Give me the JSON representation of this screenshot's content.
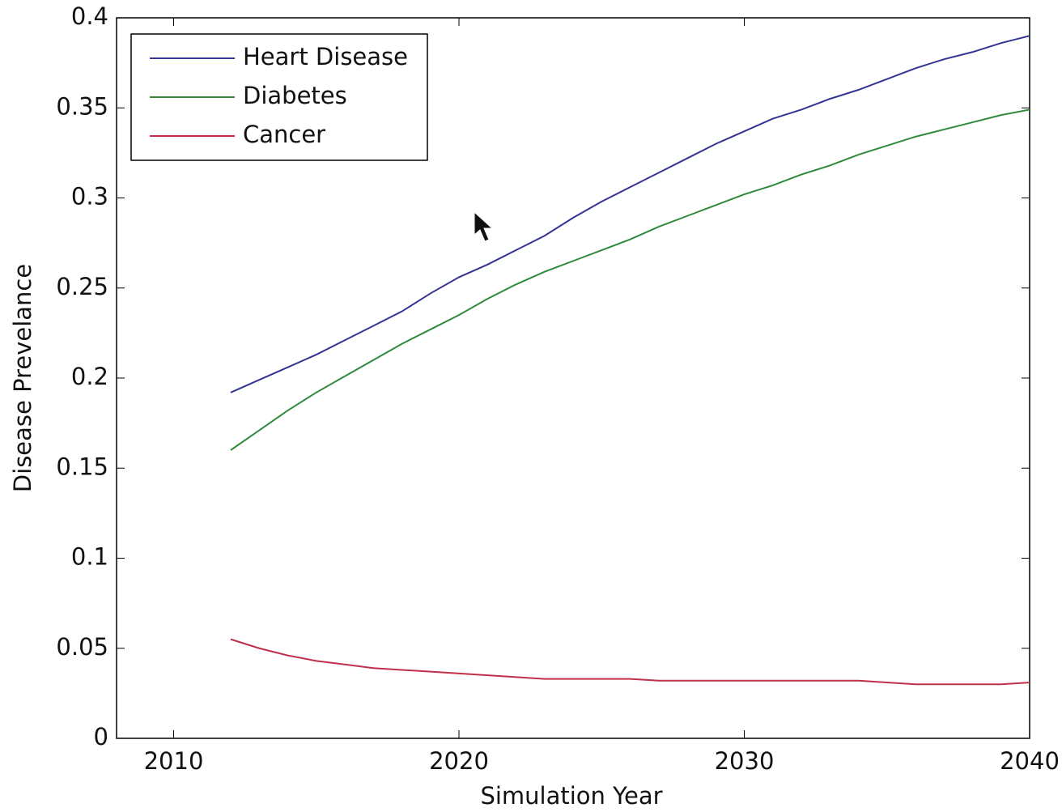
{
  "chart_data": {
    "type": "line",
    "x_label": "Simulation Year",
    "y_label": "Disease Prevelance",
    "x": [
      2012,
      2013,
      2014,
      2015,
      2016,
      2017,
      2018,
      2019,
      2020,
      2021,
      2022,
      2023,
      2024,
      2025,
      2026,
      2027,
      2028,
      2029,
      2030,
      2031,
      2032,
      2033,
      2034,
      2035,
      2036,
      2037,
      2038,
      2039,
      2040
    ],
    "series": [
      {
        "name": "Heart Disease",
        "color": "#343494",
        "values": [
          0.192,
          0.199,
          0.206,
          0.213,
          0.221,
          0.229,
          0.237,
          0.247,
          0.256,
          0.263,
          0.271,
          0.279,
          0.289,
          0.298,
          0.306,
          0.314,
          0.322,
          0.33,
          0.337,
          0.344,
          0.349,
          0.355,
          0.36,
          0.366,
          0.372,
          0.377,
          0.381,
          0.386,
          0.39
        ]
      },
      {
        "name": "Diabetes",
        "color": "#2f8a3c",
        "values": [
          0.16,
          0.171,
          0.182,
          0.192,
          0.201,
          0.21,
          0.219,
          0.227,
          0.235,
          0.244,
          0.252,
          0.259,
          0.265,
          0.271,
          0.277,
          0.284,
          0.29,
          0.296,
          0.302,
          0.307,
          0.313,
          0.318,
          0.324,
          0.329,
          0.334,
          0.338,
          0.342,
          0.346,
          0.349
        ]
      },
      {
        "name": "Cancer",
        "color": "#c0304a",
        "values": [
          0.055,
          0.05,
          0.046,
          0.043,
          0.041,
          0.039,
          0.038,
          0.037,
          0.036,
          0.035,
          0.034,
          0.033,
          0.033,
          0.033,
          0.033,
          0.032,
          0.032,
          0.032,
          0.032,
          0.032,
          0.032,
          0.032,
          0.032,
          0.031,
          0.03,
          0.03,
          0.03,
          0.03,
          0.031
        ]
      }
    ],
    "xlim": [
      2008,
      2040
    ],
    "xticks": [
      2010,
      2020,
      2030,
      2040
    ],
    "ylim": [
      0,
      0.4
    ],
    "yticks": [
      0,
      0.05,
      0.1,
      0.15,
      0.2,
      0.25,
      0.3,
      0.35,
      0.4
    ],
    "grid": false,
    "legend_position": "upper-left"
  }
}
